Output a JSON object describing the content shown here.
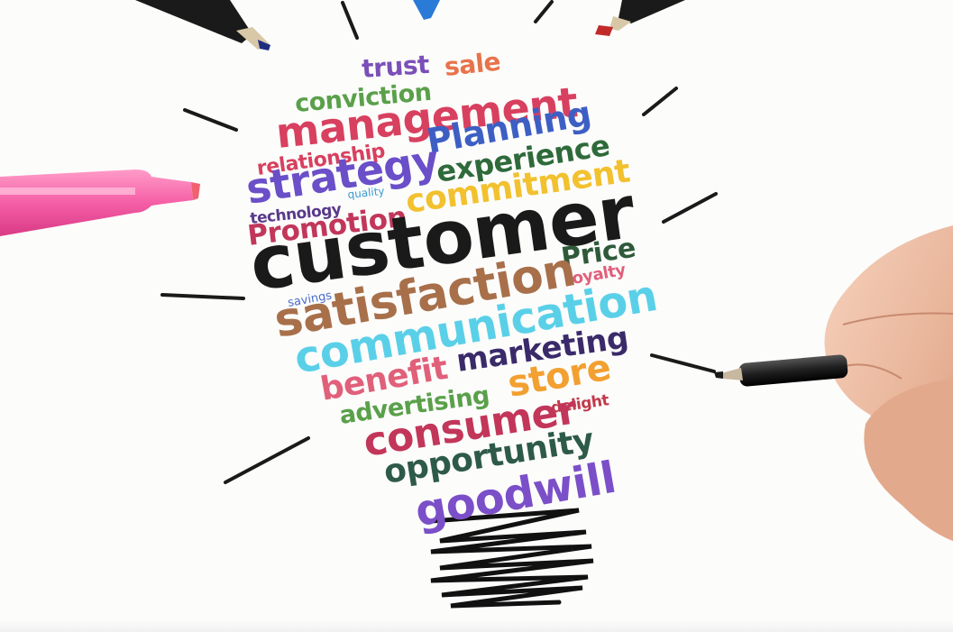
{
  "image": {
    "words": [
      {
        "text": "trust",
        "color": "#7b4fb8"
      },
      {
        "text": "sale",
        "color": "#e8734a"
      },
      {
        "text": "conviction",
        "color": "#5aa04a"
      },
      {
        "text": "management",
        "color": "#d8405f"
      },
      {
        "text": "relationship",
        "color": "#d8405f"
      },
      {
        "text": "Planning",
        "color": "#3d5fc4"
      },
      {
        "text": "strategy",
        "color": "#6a4fc8"
      },
      {
        "text": "experience",
        "color": "#2e6a3a"
      },
      {
        "text": "technology",
        "color": "#5a3a8a"
      },
      {
        "text": "quality",
        "color": "#3a9ad0"
      },
      {
        "text": "commitment",
        "color": "#f2c12e"
      },
      {
        "text": "Promotion",
        "color": "#c2365a"
      },
      {
        "text": "customer",
        "color": "#1a1a1a"
      },
      {
        "text": "Price",
        "color": "#2e5a3a"
      },
      {
        "text": "savings",
        "color": "#4a6ad0"
      },
      {
        "text": "loyalty",
        "color": "#e0607a"
      },
      {
        "text": "satisfaction",
        "color": "#a8704a"
      },
      {
        "text": "communication",
        "color": "#5ad0e8"
      },
      {
        "text": "marketing",
        "color": "#3a2a6a"
      },
      {
        "text": "benefit",
        "color": "#e0607a"
      },
      {
        "text": "store",
        "color": "#f2a030"
      },
      {
        "text": "advertising",
        "color": "#5aa04a"
      },
      {
        "text": "delight",
        "color": "#c23a4a"
      },
      {
        "text": "consumer",
        "color": "#c2365a"
      },
      {
        "text": "opportunity",
        "color": "#2e5a4a"
      },
      {
        "text": "goodwill",
        "color": "#7b4fc8"
      }
    ],
    "pens": {
      "pink_marker": "pink-highlighter-icon",
      "red_marker": "red-marker-icon",
      "blue_marker": "blue-marker-icon",
      "hand_pen": "hand-holding-pen-icon"
    }
  }
}
